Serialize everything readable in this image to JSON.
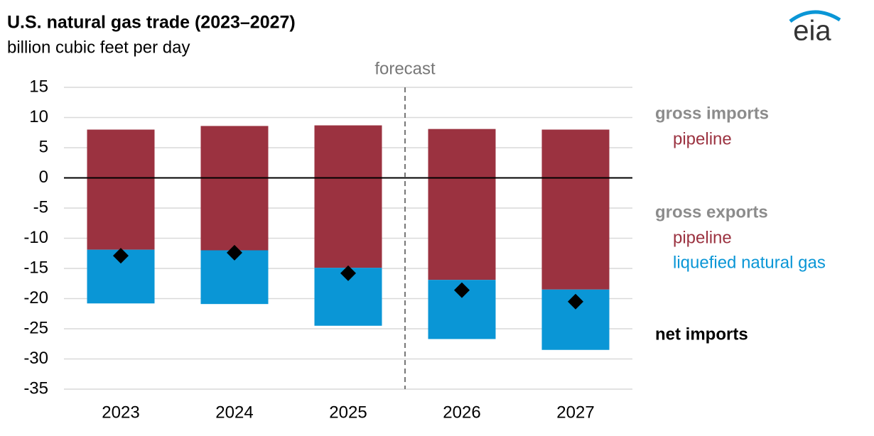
{
  "chart_data": {
    "type": "stacked_bar",
    "title": "U.S. natural gas trade (2023–2027)",
    "subtitle": "billion cubic feet per day",
    "logo": "eia",
    "categories": [
      "2023",
      "2024",
      "2025",
      "2026",
      "2027"
    ],
    "ylim": [
      -35,
      15
    ],
    "yticks": [
      15,
      10,
      5,
      0,
      -5,
      -10,
      -15,
      -20,
      -25,
      -30,
      -35
    ],
    "grid": true,
    "forecast": {
      "label": "forecast",
      "after_category": 2
    },
    "series_groups": [
      {
        "name": "gross imports",
        "series": [
          {
            "name": "pipeline",
            "color": "#9b3240",
            "values": [
              8.0,
              8.6,
              8.7,
              8.1,
              8.0
            ]
          }
        ]
      },
      {
        "name": "gross exports",
        "series": [
          {
            "name": "pipeline",
            "color": "#9b3240",
            "values": [
              -11.9,
              -12.0,
              -14.9,
              -16.9,
              -18.5
            ]
          },
          {
            "name": "liquefied natural gas",
            "color": "#0a96d6",
            "values": [
              -8.9,
              -8.9,
              -9.6,
              -9.8,
              -10.0
            ]
          }
        ]
      }
    ],
    "net_imports": {
      "name": "net imports",
      "color": "#000000",
      "marker": "diamond",
      "values": [
        -12.9,
        -12.4,
        -15.8,
        -18.6,
        -20.5
      ]
    }
  }
}
